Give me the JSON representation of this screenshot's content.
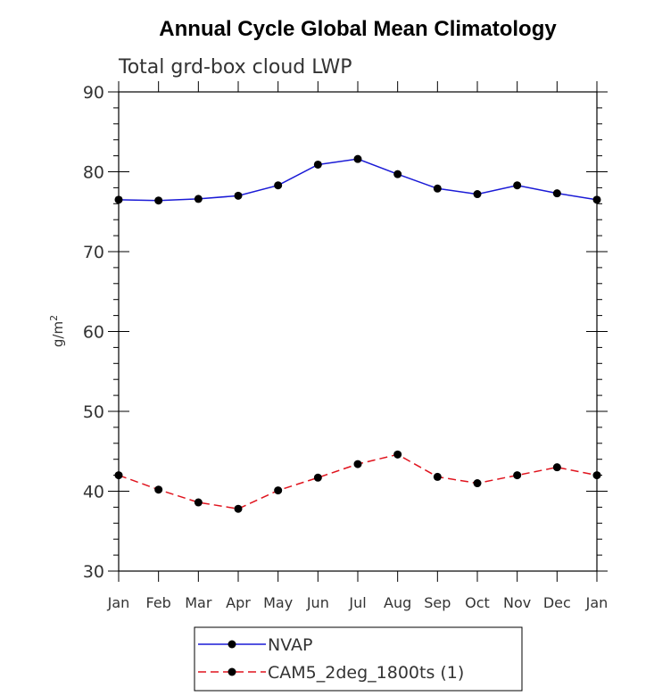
{
  "chart_data": {
    "type": "line",
    "title": "Annual Cycle Global Mean Climatology",
    "subtitle": "Total grd-box cloud LWP",
    "xlabel": "",
    "ylabel": "g/m",
    "ylabel_sup": "2",
    "ylim": [
      30,
      90
    ],
    "yticks": [
      30,
      40,
      50,
      60,
      70,
      80,
      90
    ],
    "categories": [
      "Jan",
      "Feb",
      "Mar",
      "Apr",
      "May",
      "Jun",
      "Jul",
      "Aug",
      "Sep",
      "Oct",
      "Nov",
      "Dec",
      "Jan"
    ],
    "series": [
      {
        "name": "NVAP",
        "color": "#1a1ad6",
        "dash": "solid",
        "values": [
          76.5,
          76.4,
          76.6,
          77.0,
          78.3,
          80.9,
          81.6,
          79.7,
          77.9,
          77.2,
          78.3,
          77.3,
          76.5
        ]
      },
      {
        "name": "CAM5_2deg_1800ts (1)",
        "color": "#e0141e",
        "dash": "dashed",
        "values": [
          42.0,
          40.2,
          38.6,
          37.8,
          40.1,
          41.7,
          43.4,
          44.6,
          41.8,
          41.0,
          42.0,
          43.0,
          42.0
        ]
      }
    ],
    "legend_position": "bottom"
  }
}
